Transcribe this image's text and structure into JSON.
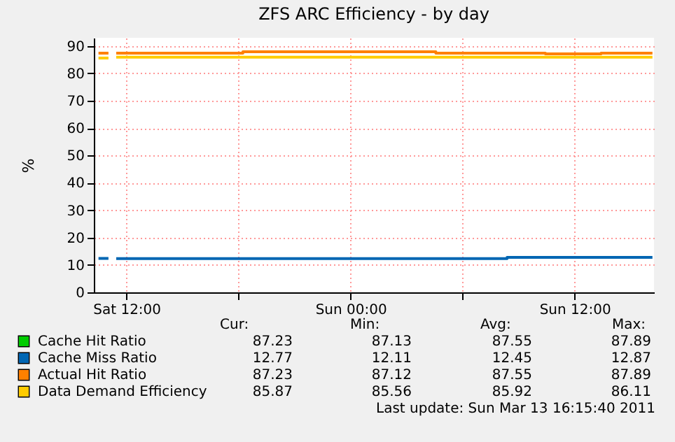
{
  "chart_data": {
    "type": "step",
    "title": "ZFS ARC Efficiency - by day",
    "ylabel": "%",
    "xlim": [
      "2011-03-12T10:15",
      "2011-03-13T16:15"
    ],
    "xticks": [
      {
        "value": "2011-03-12T12:00",
        "label": "Sat 12:00"
      },
      {
        "value": "2011-03-12T18:00",
        "label": null
      },
      {
        "value": "2011-03-13T00:00",
        "label": "Sun 00:00"
      },
      {
        "value": "2011-03-13T06:00",
        "label": null
      },
      {
        "value": "2011-03-13T12:00",
        "label": "Sun 12:00"
      }
    ],
    "ylim": [
      0,
      93
    ],
    "yticks": [
      0,
      10,
      20,
      30,
      40,
      50,
      60,
      70,
      80,
      90
    ],
    "grid": true,
    "legend": "bottom",
    "series": [
      {
        "name": "Cache Hit Ratio",
        "color": "#00cc00"
      },
      {
        "name": "Cache Miss Ratio",
        "color": "#0066b3",
        "x": [
          "2011-03-12T10:30",
          "2011-03-12T11:02",
          "2011-03-12T11:12",
          "2011-03-12T11:27",
          "2011-03-13T08:23",
          "2011-03-13T16:10"
        ],
        "values": [
          12.4,
          12.4,
          null,
          12.3,
          12.8,
          12.8
        ]
      },
      {
        "name": "Actual Hit Ratio",
        "color": "#ff8000",
        "x": [
          "2011-03-12T10:30",
          "2011-03-12T11:02",
          "2011-03-12T11:12",
          "2011-03-12T11:27",
          "2011-03-12T18:14",
          "2011-03-13T04:34",
          "2011-03-13T10:26",
          "2011-03-13T13:25",
          "2011-03-13T16:10"
        ],
        "values": [
          87.4,
          87.4,
          null,
          87.4,
          87.9,
          87.4,
          87.1,
          87.4,
          87.4
        ]
      },
      {
        "name": "Data Demand Efficiency",
        "color": "#ffcc00",
        "x": [
          "2011-03-12T10:30",
          "2011-03-12T11:02",
          "2011-03-12T11:12",
          "2011-03-12T11:27",
          "2011-03-13T16:10"
        ],
        "values": [
          85.6,
          85.6,
          null,
          85.9,
          85.9
        ]
      }
    ],
    "annotations": [
      "Cur:",
      "Min:",
      "Avg:",
      "Max:",
      "87.23",
      "87.13",
      "87.55",
      "87.89",
      "12.77",
      "12.11",
      "12.45",
      "12.87",
      "87.23",
      "87.12",
      "87.55",
      "87.89",
      "85.87",
      "85.56",
      "85.92",
      "86.11",
      "Last update: Sun Mar 13 16:15:40 2011"
    ]
  }
}
